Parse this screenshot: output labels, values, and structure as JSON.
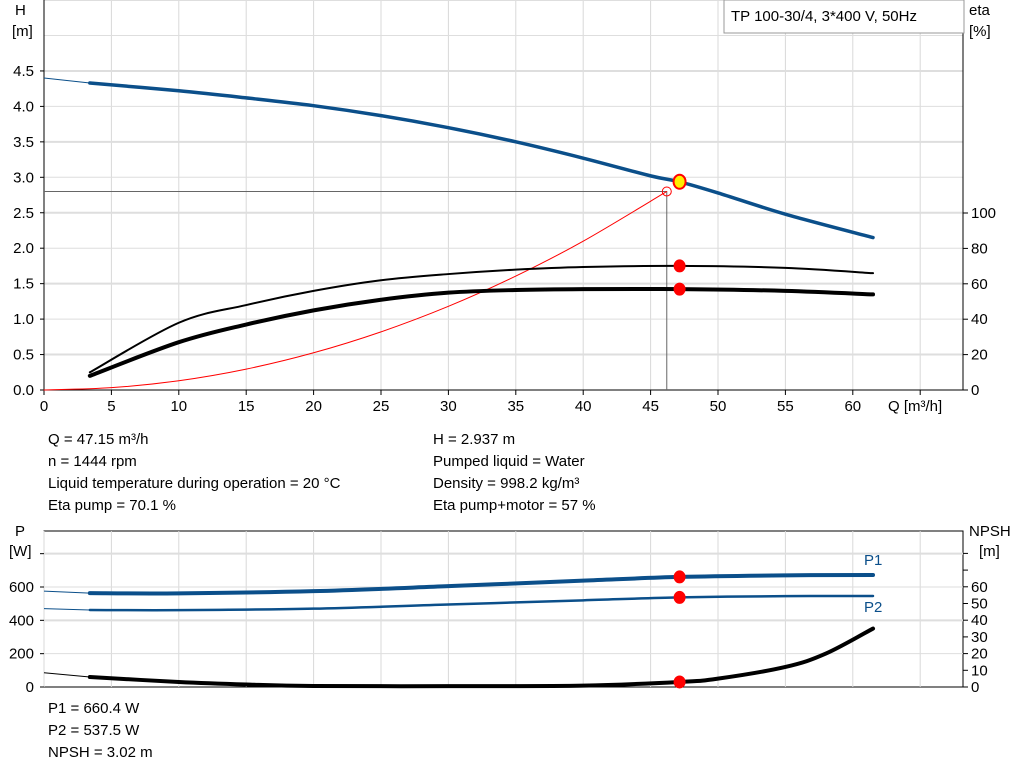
{
  "chart_data": [
    {
      "type": "line",
      "title_box": "TP 100-30/4, 3*400 V, 50Hz",
      "xlabel": "Q [m³/h]",
      "ylabel_left": [
        "H",
        "[m]"
      ],
      "ylabel_right": [
        "eta",
        "[%]"
      ],
      "xlim": [
        0,
        68
      ],
      "ylim_left": [
        0,
        5.5
      ],
      "ylim_right_ticks": [
        0,
        20,
        40,
        60,
        80,
        100
      ],
      "x_ticks": [
        0,
        5,
        10,
        15,
        20,
        25,
        30,
        35,
        40,
        45,
        50,
        55,
        60
      ],
      "y_ticks_left": [
        "0.0",
        "0.5",
        "1.0",
        "1.5",
        "2.0",
        "2.5",
        "3.0",
        "3.5",
        "4.0",
        "4.5"
      ],
      "grid": true,
      "series": [
        {
          "key": "H",
          "axis": "left",
          "color": "#0b4f8a",
          "x": [
            3.4,
            10,
            15,
            20,
            25,
            30,
            35,
            40,
            45,
            47.15,
            50,
            55,
            61.5
          ],
          "y": [
            4.33,
            4.22,
            4.12,
            4.01,
            3.87,
            3.7,
            3.5,
            3.27,
            3.02,
            2.937,
            2.78,
            2.48,
            2.15
          ],
          "extrapolated_start": [
            0,
            4.4
          ]
        },
        {
          "key": "eta_pump",
          "axis": "right",
          "color": "#000000",
          "x": [
            3.4,
            10,
            15,
            20,
            25,
            30,
            35,
            40,
            47.15,
            55,
            61.5
          ],
          "y": [
            10,
            38,
            48,
            56,
            62,
            65.5,
            68,
            69.5,
            70.1,
            69,
            66
          ]
        },
        {
          "key": "eta_pump_motor",
          "axis": "right",
          "color": "#000000",
          "x": [
            3.4,
            10,
            15,
            20,
            25,
            30,
            35,
            40,
            47.15,
            55,
            61.5
          ],
          "y": [
            8,
            27,
            37,
            45,
            51,
            55,
            56.5,
            57,
            57,
            56,
            54
          ]
        },
        {
          "key": "system",
          "axis": "left",
          "color": "#ff0000",
          "x": [
            0,
            5,
            10,
            15,
            20,
            25,
            30,
            35,
            40,
            46.2
          ],
          "y": [
            0,
            0.033,
            0.131,
            0.295,
            0.525,
            0.82,
            1.18,
            1.607,
            2.099,
            2.8
          ]
        }
      ],
      "operating_point": {
        "Q": 47.15,
        "H": 2.937,
        "eta_pump": 70.1,
        "eta_pump_motor": 57
      },
      "guide_point": {
        "Q": 46.2,
        "H": 2.8
      }
    },
    {
      "type": "line",
      "ylabel_left": [
        "P",
        "[W]"
      ],
      "ylabel_right": [
        "NPSH",
        "[m]"
      ],
      "xlim": [
        0,
        68
      ],
      "ylim_left": [
        0,
        936
      ],
      "y_ticks_left": [
        0,
        200,
        400,
        600
      ],
      "y_ticks_right": [
        0,
        10,
        20,
        30,
        40,
        50,
        60
      ],
      "grid": true,
      "series": [
        {
          "name": "P1",
          "axis": "left",
          "color": "#0b4f8a",
          "x": [
            3.4,
            10,
            20,
            30,
            40,
            47.15,
            55,
            61.5
          ],
          "y": [
            563,
            562,
            575,
            605,
            638,
            660.4,
            670,
            672
          ],
          "extrapolated_start": [
            0,
            575
          ]
        },
        {
          "name": "P2",
          "axis": "left",
          "color": "#0b4f8a",
          "x": [
            3.4,
            10,
            20,
            30,
            40,
            47.15,
            55,
            61.5
          ],
          "y": [
            462,
            461,
            470,
            495,
            520,
            537.5,
            545,
            546
          ],
          "extrapolated_start": [
            0,
            470
          ]
        },
        {
          "key": "NPSH",
          "axis": "right",
          "color": "#000000",
          "x": [
            3.4,
            10,
            15,
            20,
            30,
            40,
            47.15,
            50,
            55,
            58,
            61.5
          ],
          "y": [
            6,
            3,
            1.5,
            0.6,
            0.5,
            0.8,
            3.02,
            5,
            12,
            20,
            35
          ],
          "extrapolated_start": [
            0,
            8.5
          ]
        }
      ],
      "operating_point": {
        "Q": 47.15,
        "P1": 660.4,
        "P2": 537.5,
        "NPSH": 3.02
      }
    }
  ],
  "info_top_left": [
    "Q = 47.15 m³/h",
    "n = 1444 rpm",
    "Liquid temperature during operation = 20 °C",
    "Eta pump = 70.1 %"
  ],
  "info_top_right": [
    "H = 2.937 m",
    "Pumped liquid = Water",
    "Density = 998.2 kg/m³",
    "Eta pump+motor = 57 %"
  ],
  "info_bottom": [
    "P1 = 660.4 W",
    "P2 = 537.5 W",
    "NPSH = 3.02 m"
  ]
}
